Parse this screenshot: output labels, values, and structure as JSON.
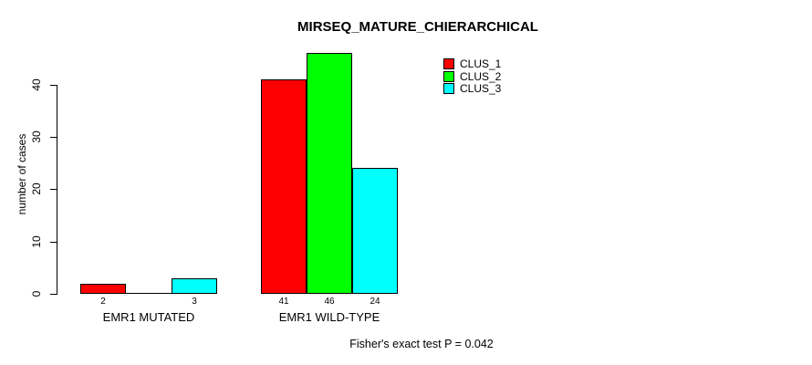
{
  "chart_data": {
    "type": "bar",
    "title": "MIRSEQ_MATURE_CHIERARCHICAL",
    "xlabel": "",
    "ylabel": "number of cases",
    "categories": [
      "EMR1 MUTATED",
      "EMR1 WILD-TYPE"
    ],
    "series": [
      {
        "name": "CLUS_1",
        "color": "#ff0000",
        "values": [
          2,
          41
        ]
      },
      {
        "name": "CLUS_2",
        "color": "#00ff00",
        "values": [
          0,
          46
        ]
      },
      {
        "name": "CLUS_3",
        "color": "#00ffff",
        "values": [
          3,
          24
        ]
      }
    ],
    "bar_value_labels_shown": [
      "2",
      "3",
      "41",
      "46",
      "24"
    ],
    "yticks": [
      0,
      10,
      20,
      30,
      40
    ],
    "ylim": [
      0,
      46
    ],
    "grid": false,
    "legend_position": "top-right",
    "legend_entries": [
      "CLUS_1",
      "CLUS_2",
      "CLUS_3"
    ],
    "annotation": "Fisher's exact test P = 0.042",
    "axis_color": "#000000",
    "bar_border_color": "#000000"
  }
}
